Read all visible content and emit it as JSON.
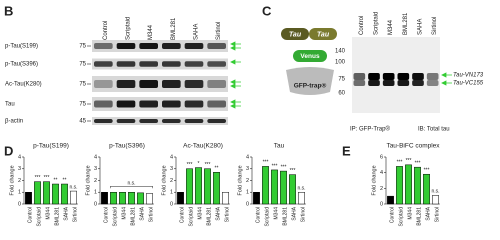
{
  "figure": {
    "panel_b": {
      "label": "B",
      "lanes": [
        "Control",
        "Scriptaid",
        "M344",
        "BML281",
        "SAHA",
        "Sirtinol"
      ],
      "rows": [
        {
          "name": "p-Tau(S199)",
          "marker": 75
        },
        {
          "name": "p-Tau(S396)",
          "marker": 75
        },
        {
          "name": "Ac-Tau(K280)",
          "marker": 75
        },
        {
          "name": "Tau",
          "marker": 75
        },
        {
          "name": "β-actin",
          "marker": 45
        }
      ]
    },
    "panel_c": {
      "label": "C",
      "lanes": [
        "Control",
        "Scriptaid",
        "M344",
        "BML281",
        "SAHA",
        "Sirtinol"
      ],
      "diagram": {
        "tau_left": "Tau",
        "tau_right": "Tau",
        "venus": "Venus",
        "trap": "GFP-trap®"
      },
      "markers": [
        140,
        100,
        75,
        60
      ],
      "bands": [
        "Tau-VN173",
        "Tau-VC155"
      ],
      "ip": "IP: GFP-Trap®",
      "ib": "IB: Total tau"
    },
    "panel_d_label": "D",
    "panel_e_label": "E"
  },
  "chart_data": [
    {
      "type": "bar",
      "title": "p-Tau(S199)",
      "y_label": "Fold change",
      "categories": [
        "Control",
        "Scriptaid",
        "M344",
        "BML281",
        "SAHA",
        "Sirtinol"
      ],
      "values": [
        1,
        1.9,
        1.9,
        1.7,
        1.7,
        1.1
      ],
      "colors": [
        "#000000",
        "#33cc33",
        "#33cc33",
        "#33cc33",
        "#33cc33",
        "#ffffff"
      ],
      "annotations": [
        null,
        "***",
        "***",
        "**",
        "**",
        "n.s."
      ],
      "ylim": [
        0,
        4
      ],
      "yticks": [
        0,
        1,
        2,
        3,
        4
      ]
    },
    {
      "type": "bar",
      "title": "p-Tau(S396)",
      "y_label": "Fold change",
      "categories": [
        "Control",
        "Scriptaid",
        "M344",
        "BML281",
        "SAHA",
        "Sirtinol"
      ],
      "values": [
        1,
        1,
        1,
        1,
        0.95,
        0.9
      ],
      "colors": [
        "#000000",
        "#33cc33",
        "#33cc33",
        "#33cc33",
        "#33cc33",
        "#ffffff"
      ],
      "bracket_label": "n.s.",
      "ylim": [
        0,
        4
      ],
      "yticks": [
        0,
        1,
        2,
        3,
        4
      ]
    },
    {
      "type": "bar",
      "title": "Ac-Tau(K280)",
      "y_label": "Fold change",
      "categories": [
        "Control",
        "Scriptaid",
        "M344",
        "BML281",
        "SAHA",
        "Sirtinol"
      ],
      "values": [
        1,
        3.0,
        3.1,
        3.0,
        2.7,
        1.0
      ],
      "colors": [
        "#000000",
        "#33cc33",
        "#33cc33",
        "#33cc33",
        "#33cc33",
        "#ffffff"
      ],
      "annotations": [
        null,
        "***",
        "*",
        "***",
        "**",
        null
      ],
      "ylim": [
        0,
        4
      ],
      "yticks": [
        0,
        1,
        2,
        3,
        4
      ]
    },
    {
      "type": "bar",
      "title": "Tau",
      "y_label": "Fold change",
      "categories": [
        "Control",
        "Scriptaid",
        "M344",
        "BML281",
        "SAHA",
        "Sirtinol"
      ],
      "values": [
        1,
        3.2,
        2.9,
        2.8,
        2.5,
        1.0
      ],
      "colors": [
        "#000000",
        "#33cc33",
        "#33cc33",
        "#33cc33",
        "#33cc33",
        "#ffffff"
      ],
      "annotations": [
        null,
        "***",
        "***",
        "***",
        "***",
        "n.s."
      ],
      "ylim": [
        0,
        4
      ],
      "yticks": [
        0,
        1,
        2,
        3,
        4
      ]
    },
    {
      "type": "bar",
      "title": "Tau-BiFC complex",
      "y_label": "Fold change",
      "categories": [
        "Control",
        "Scriptaid",
        "M344",
        "BML281",
        "SAHA",
        "Sirtinol"
      ],
      "values": [
        1,
        4.8,
        5.0,
        4.7,
        3.8,
        1.1
      ],
      "colors": [
        "#000000",
        "#33cc33",
        "#33cc33",
        "#33cc33",
        "#33cc33",
        "#ffffff"
      ],
      "annotations": [
        null,
        "***",
        "***",
        "***",
        "***",
        "n.s."
      ],
      "ylim": [
        0,
        6
      ],
      "yticks": [
        0,
        2,
        4,
        6
      ]
    }
  ]
}
